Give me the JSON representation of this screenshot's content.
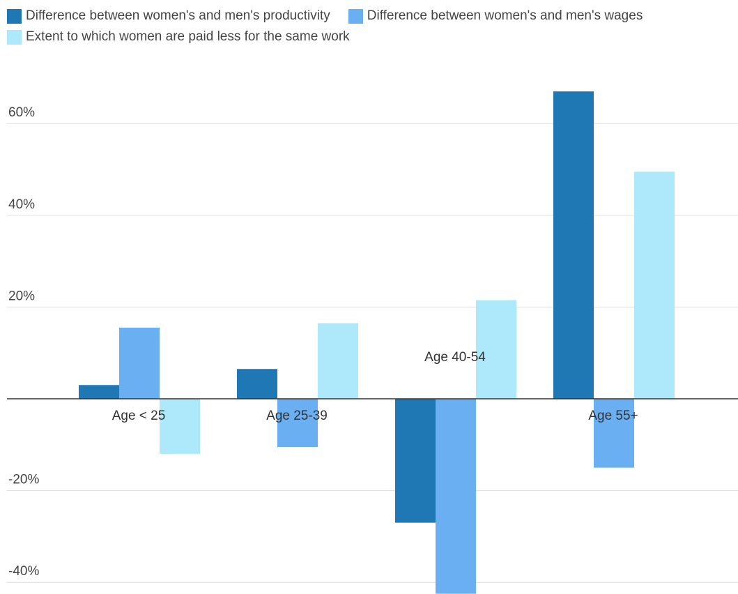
{
  "chart_data": {
    "type": "bar",
    "title": "",
    "xlabel": "",
    "ylabel": "",
    "categories": [
      "Age < 25",
      "Age 25-39",
      "Age 40-54",
      "Age 55+"
    ],
    "series": [
      {
        "name": "Difference between women's and men's productivity",
        "color": "#1f77b4",
        "values": [
          3,
          6.5,
          -27,
          67
        ]
      },
      {
        "name": "Difference between women's and men's wages",
        "color": "#6aaff2",
        "values": [
          15.5,
          -10.5,
          -42.5,
          -15
        ]
      },
      {
        "name": "Extent to which women are paid less for the same work",
        "color": "#aee9fb",
        "values": [
          -12,
          16.5,
          21.5,
          49.5
        ]
      }
    ],
    "y_ticks": [
      -40,
      -20,
      20,
      40,
      60
    ],
    "y_tick_labels": [
      "-40%",
      "-20%",
      "20%",
      "40%",
      "60%"
    ],
    "ylim": [
      -43,
      70
    ],
    "grid": true,
    "legend_position": "top"
  }
}
